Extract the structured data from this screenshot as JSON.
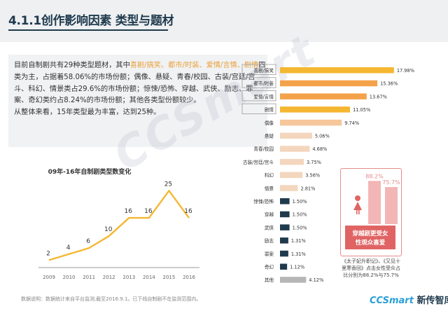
{
  "slide": {
    "title": "4.1.1创作影响因素  类型与题材",
    "intro": {
      "parts": [
        {
          "t": "目前自制剧共有29种类型题材，其中",
          "hl": false
        },
        {
          "t": "喜剧/搞笑、都市/时装、爱情/言情、剧情",
          "hl": true
        },
        {
          "t": "四类为主，占据着58.06%的市场份额；偶像、悬疑、青春/校园、古装/宫廷/宫斗、科幻、情景类占29.6%的市场份额；惊悚/恐怖、穿越、武侠、励志、罪案、奇幻类约占8.24%的市场份额；其他各类型份额较少。",
          "hl": false
        },
        {
          "t": "从整体来看，15年类型最为丰富，达到25种。",
          "hl": false
        }
      ]
    },
    "watermark": "CCSmart",
    "footer_note": "数据说明：数据统计来自平台监测,截至2016.9.1。已下线自制剧不在监测范围内。",
    "logo": {
      "cc": "CCSmart",
      "rest": " 新传智库"
    },
    "caption": "《太子妃升职记》、《又见十里寒香回》点击女性受众占比分别为88.2%与75.7%",
    "colors": {
      "gold": "#f5b731",
      "orange": "#f4a24a",
      "light_orange": "#f6c79a",
      "peach": "#f3d6bd",
      "light_gray": "#e6e6e6",
      "navy": "#1f3a4d",
      "pink": "#f2b6b6",
      "red": "#e06464",
      "gray": "#b6b6b6"
    }
  },
  "chart_data": [
    {
      "type": "line",
      "title": "09年-16年自制剧类型数变化",
      "x": [
        "2009",
        "2010",
        "2011",
        "2012",
        "2013",
        "2014",
        "2015",
        "2016"
      ],
      "series": [
        {
          "values": [
            2,
            4,
            6,
            10,
            16,
            16,
            25,
            16
          ]
        }
      ],
      "ylim": [
        0,
        26
      ],
      "grid": false
    },
    {
      "type": "bar",
      "orientation": "horizontal",
      "categories": [
        "喜剧/搞笑",
        "都市/时装",
        "爱情/言情",
        "剧情",
        "偶像",
        "悬疑",
        "青春/校园",
        "古装/宫廷/宫斗",
        "科幻",
        "情景",
        "惊悚/恐怖",
        "穿越",
        "武侠",
        "励志",
        "罪案",
        "奇幻",
        "其他"
      ],
      "values": [
        17.98,
        15.36,
        13.67,
        11.05,
        9.74,
        5.06,
        4.68,
        3.75,
        3.56,
        2.81,
        1.5,
        1.5,
        1.5,
        1.31,
        1.31,
        1.12,
        4.12
      ],
      "labels": [
        "17.98%",
        "15.36%",
        "13.67%",
        "11.05%",
        "9.74%",
        "5.06%",
        "4.68%",
        "3.75%",
        "3.56%",
        "2.81%",
        "1.50%",
        "1.50%",
        "1.50%",
        "1.31%",
        "1.31%",
        "1.12%",
        "4.12%"
      ],
      "bar_colors": [
        "#f5b731",
        "#f4a24a",
        "#f4a24a",
        "#f5b731",
        "#f6c79a",
        "#f3d6bd",
        "#f3d6bd",
        "#f3d6bd",
        "#f3d6bd",
        "#f3d6bd",
        "#1f3a4d",
        "#1f3a4d",
        "#1f3a4d",
        "#1f3a4d",
        "#1f3a4d",
        "#1f3a4d",
        "#b6b6b6"
      ],
      "label_boxed": [
        "喜剧/搞笑",
        "都市/时装",
        "爱情/言情",
        "剧情"
      ],
      "xlim": [
        0,
        18
      ]
    },
    {
      "type": "bar",
      "categories": [
        "",
        ""
      ],
      "values": [
        88.2,
        75.7
      ],
      "labels": [
        "88.2%",
        "75.7%"
      ],
      "bar_colors": [
        "#f2b6b6",
        "#f2b6b6"
      ],
      "annotation": "穿越剧更受女性观众喜爱",
      "ylim": [
        0,
        100
      ]
    }
  ]
}
